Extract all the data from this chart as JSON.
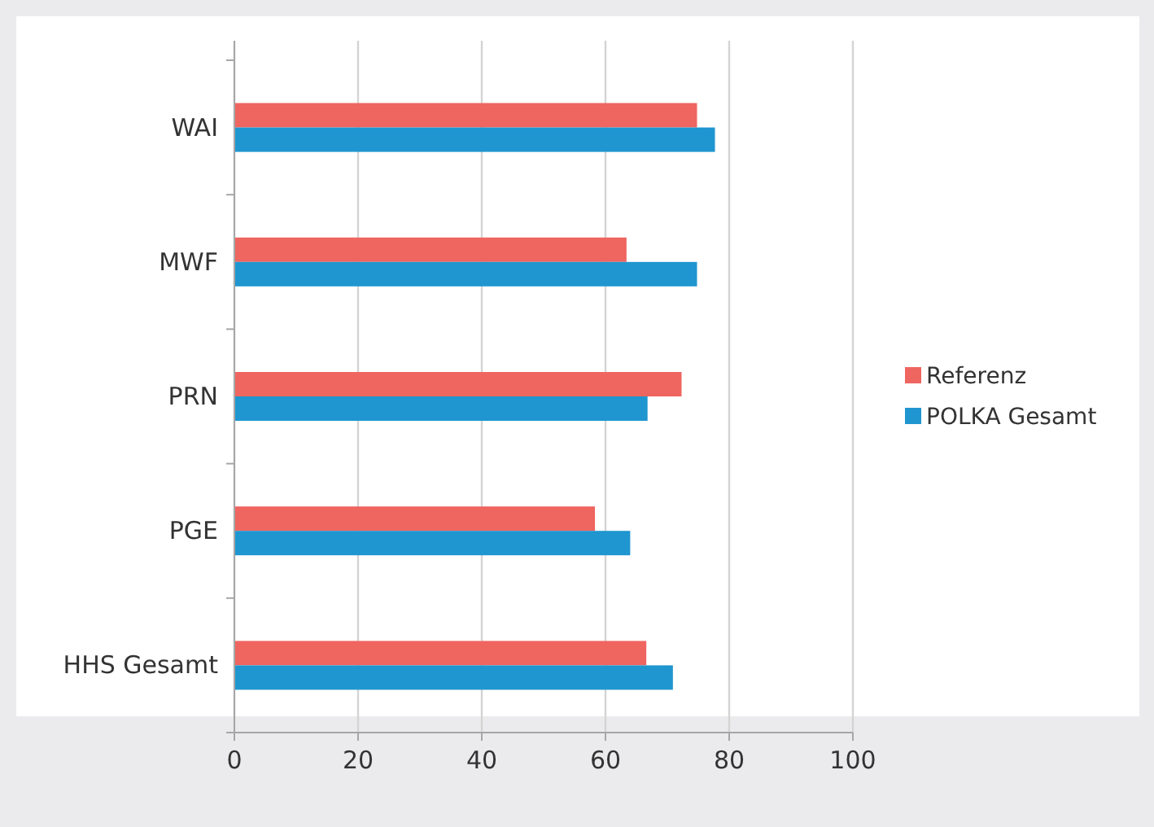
{
  "chart_data": {
    "type": "bar",
    "orientation": "horizontal",
    "categories": [
      "WAI",
      "MWF",
      "PRN",
      "PGE",
      "HHS Gesamt"
    ],
    "series": [
      {
        "name": "Referenz",
        "color": "#ef6560",
        "values": [
          74.8,
          63.4,
          72.3,
          58.3,
          66.6
        ]
      },
      {
        "name": "POLKA Gesamt",
        "color": "#1f96cf",
        "values": [
          77.7,
          74.8,
          66.8,
          64.0,
          70.9
        ]
      }
    ],
    "xlim": [
      0,
      100
    ],
    "xticks": [
      0,
      20,
      40,
      60,
      80,
      100
    ],
    "grid": "x",
    "legend": "right"
  }
}
